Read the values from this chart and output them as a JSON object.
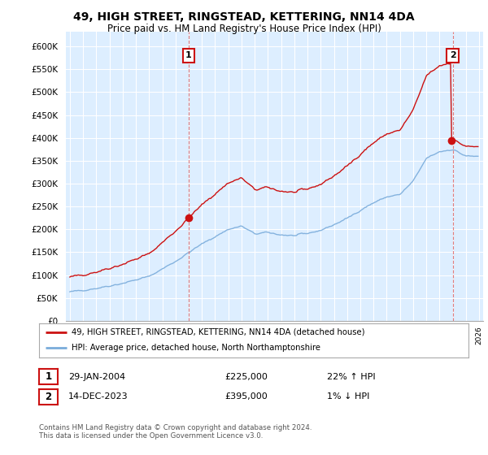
{
  "title": "49, HIGH STREET, RINGSTEAD, KETTERING, NN14 4DA",
  "subtitle": "Price paid vs. HM Land Registry's House Price Index (HPI)",
  "yticks": [
    0,
    50000,
    100000,
    150000,
    200000,
    250000,
    300000,
    350000,
    400000,
    450000,
    500000,
    550000,
    600000
  ],
  "ytick_labels": [
    "£0",
    "£50K",
    "£100K",
    "£150K",
    "£200K",
    "£250K",
    "£300K",
    "£350K",
    "£400K",
    "£450K",
    "£500K",
    "£550K",
    "£600K"
  ],
  "hpi_color": "#7aacdb",
  "price_color": "#cc1111",
  "legend_line1": "49, HIGH STREET, RINGSTEAD, KETTERING, NN14 4DA (detached house)",
  "legend_line2": "HPI: Average price, detached house, North Northamptonshire",
  "table_row1": [
    "1",
    "29-JAN-2004",
    "£225,000",
    "22% ↑ HPI"
  ],
  "table_row2": [
    "2",
    "14-DEC-2023",
    "£395,000",
    "1% ↓ HPI"
  ],
  "footer": "Contains HM Land Registry data © Crown copyright and database right 2024.\nThis data is licensed under the Open Government Licence v3.0.",
  "background_color": "#ffffff",
  "chart_bg_color": "#ddeeff",
  "grid_color": "#ffffff",
  "marker1_year": 2004,
  "marker1_month": 1,
  "marker1_price": 225000,
  "marker2_year": 2023,
  "marker2_month": 12,
  "marker2_price": 395000,
  "vline_color": "#dd6666"
}
